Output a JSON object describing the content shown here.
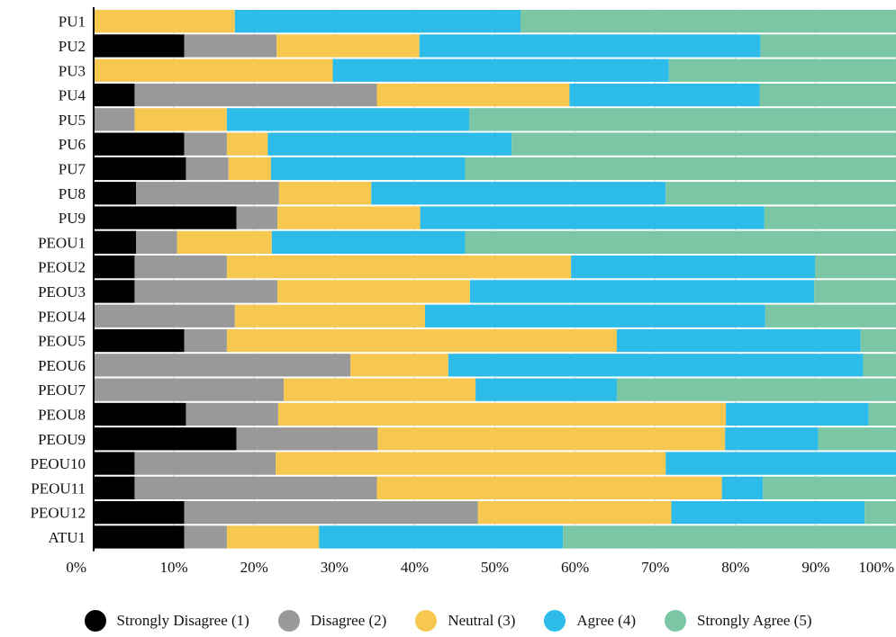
{
  "chart_data": {
    "type": "bar",
    "orientation": "horizontal",
    "stacked": true,
    "percent": true,
    "categories": [
      "PU1",
      "PU2",
      "PU3",
      "PU4",
      "PU5",
      "PU6",
      "PU7",
      "PU8",
      "PU9",
      "PEOU1",
      "PEOU2",
      "PEOU3",
      "PEOU4",
      "PEOU5",
      "PEOU6",
      "PEOU7",
      "PEOU8",
      "PEOU9",
      "PEOU10",
      "PEOU11",
      "PEOU12",
      "ATU1"
    ],
    "series": [
      {
        "name": "Strongly Disagree (1)",
        "color": "#000000",
        "values": [
          0,
          11.3,
          0,
          5.1,
          0,
          11.3,
          11.5,
          5.3,
          17.8,
          5.3,
          5.1,
          5.1,
          0,
          11.3,
          0,
          0,
          11.5,
          17.8,
          5.1,
          5.1,
          11.3,
          11.3
        ]
      },
      {
        "name": "Disagree (2)",
        "color": "#999999",
        "values": [
          0,
          11.5,
          0,
          30.2,
          5.1,
          5.3,
          5.3,
          17.8,
          5.1,
          5.1,
          11.5,
          17.8,
          17.6,
          5.3,
          32.0,
          23.7,
          11.5,
          17.6,
          17.6,
          30.2,
          36.6,
          5.3
        ]
      },
      {
        "name": "Neutral (3)",
        "color": "#F6C84F",
        "values": [
          17.6,
          17.8,
          29.8,
          24.0,
          11.5,
          5.1,
          5.3,
          11.5,
          17.8,
          11.8,
          42.9,
          24.0,
          23.7,
          48.6,
          12.2,
          23.9,
          55.8,
          43.3,
          48.6,
          43.0,
          24.1,
          11.5
        ]
      },
      {
        "name": "Agree (4)",
        "color": "#2DBBEA",
        "values": [
          35.6,
          42.5,
          41.9,
          23.7,
          30.2,
          30.4,
          24.2,
          36.7,
          42.9,
          24.1,
          30.4,
          42.9,
          42.4,
          30.4,
          51.7,
          17.6,
          17.8,
          11.6,
          28.7,
          5.1,
          24.1,
          30.4
        ]
      },
      {
        "name": "Strongly Agree (5)",
        "color": "#7BC6A4",
        "values": [
          46.8,
          18.9,
          28.3,
          17.0,
          53.2,
          47.9,
          53.7,
          28.7,
          16.4,
          53.7,
          10.1,
          10.2,
          16.3,
          4.4,
          4.1,
          34.8,
          3.4,
          11.6,
          0,
          16.6,
          3.9,
          41.5
        ]
      }
    ],
    "xticks": [
      "0%",
      "10%",
      "20%",
      "30%",
      "40%",
      "50%",
      "60%",
      "70%",
      "80%",
      "90%",
      "100%"
    ],
    "xlim": [
      0,
      100
    ],
    "grid": true,
    "legend_position": "bottom"
  }
}
